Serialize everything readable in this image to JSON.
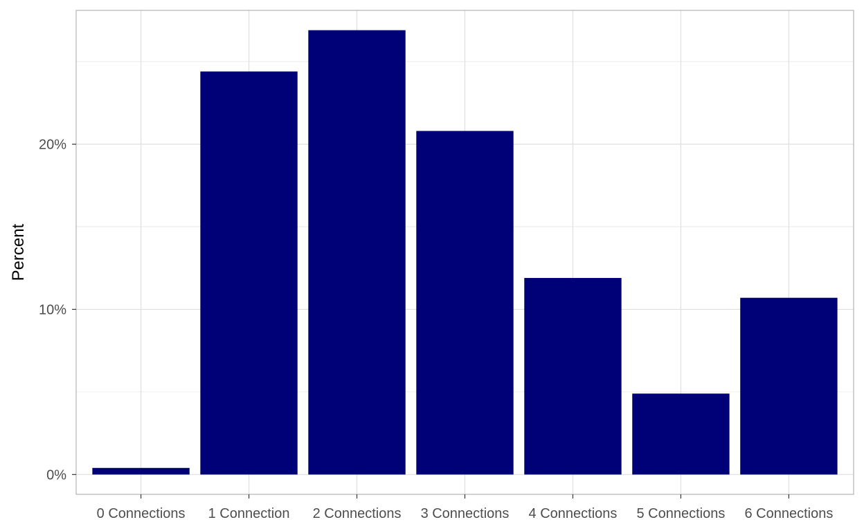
{
  "chart_data": {
    "type": "bar",
    "categories": [
      "0 Connections",
      "1 Connection",
      "2 Connections",
      "3 Connections",
      "4 Connections",
      "5 Connections",
      "6 Connections"
    ],
    "values": [
      0.4,
      24.4,
      26.9,
      20.8,
      11.9,
      4.9,
      10.7
    ],
    "xlabel": "",
    "ylabel": "Percent",
    "ylim": [
      -1.2,
      28.1
    ],
    "y_ticks": [
      0,
      10,
      20
    ],
    "y_tick_labels": [
      "0%",
      "10%",
      "20%"
    ],
    "y_minor_ticks": [
      5,
      15,
      25
    ],
    "bar_color": "#000077",
    "grid_color": "#dedede",
    "panel_border_color": "#b3b3b3",
    "grid": true,
    "legend": "none"
  }
}
